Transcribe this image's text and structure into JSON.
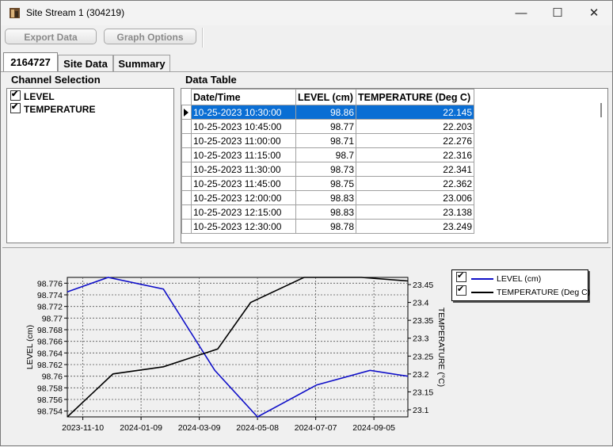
{
  "window": {
    "title": "Site Stream 1 (304219)",
    "minimize": "—",
    "maximize": "☐",
    "close": "✕"
  },
  "toolbar": {
    "export_label": "Export Data",
    "graph_options_label": "Graph Options"
  },
  "tabs": [
    {
      "label": "2164727",
      "active": true
    },
    {
      "label": "Site Data"
    },
    {
      "label": "Summary"
    }
  ],
  "channel_selection": {
    "title": "Channel Selection",
    "items": [
      {
        "label": "LEVEL",
        "checked": true
      },
      {
        "label": "TEMPERATURE",
        "checked": true
      }
    ]
  },
  "data_table": {
    "title": "Data Table",
    "columns": [
      "Date/Time",
      "LEVEL (cm)",
      "TEMPERATURE (Deg C)"
    ],
    "rows": [
      [
        "10-25-2023 10:30:00",
        "98.86",
        "22.145"
      ],
      [
        "10-25-2023 10:45:00",
        "98.77",
        "22.203"
      ],
      [
        "10-25-2023 11:00:00",
        "98.71",
        "22.276"
      ],
      [
        "10-25-2023 11:15:00",
        "98.7",
        "22.316"
      ],
      [
        "10-25-2023 11:30:00",
        "98.73",
        "22.341"
      ],
      [
        "10-25-2023 11:45:00",
        "98.75",
        "22.362"
      ],
      [
        "10-25-2023 12:00:00",
        "98.83",
        "23.006"
      ],
      [
        "10-25-2023 12:15:00",
        "98.83",
        "23.138"
      ],
      [
        "10-25-2023 12:30:00",
        "98.78",
        "23.249"
      ]
    ],
    "selected_row": 0
  },
  "chart_data": {
    "type": "line",
    "xlabel": "",
    "ylabel": "LEVEL (cm)",
    "y2label": "TEMPERATURE (°C)",
    "x_ticks": [
      "2023-11-10",
      "2024-01-09",
      "2024-03-09",
      "2024-05-08",
      "2024-07-07",
      "2024-09-05"
    ],
    "y_ticks": [
      "98.776",
      "98.774",
      "98.772",
      "98.77",
      "98.768",
      "98.766",
      "98.764",
      "98.762",
      "98.76",
      "98.758",
      "98.756",
      "98.754"
    ],
    "y2_ticks": [
      "23.45",
      "23.4",
      "23.35",
      "23.3",
      "23.25",
      "23.2",
      "23.15",
      "23.1"
    ],
    "xlim": [
      "2023-10-25",
      "2024-10-10"
    ],
    "ylim": [
      98.753,
      98.777
    ],
    "y2lim": [
      23.08,
      23.47
    ],
    "grid": true,
    "legend_position": "top-right",
    "series": [
      {
        "name": "LEVEL (cm)",
        "axis": "left",
        "color": "#1010c8",
        "x": [
          "2023-10-25",
          "2023-12-06",
          "2024-02-01",
          "2024-03-25",
          "2024-05-08",
          "2024-07-08",
          "2024-09-01",
          "2024-10-10"
        ],
        "y": [
          98.7745,
          98.777,
          98.775,
          98.761,
          98.753,
          98.7585,
          98.761,
          98.76
        ]
      },
      {
        "name": "TEMPERATURE (Deg C)",
        "axis": "right",
        "color": "#000000",
        "x": [
          "2023-10-25",
          "2023-12-11",
          "2024-02-01",
          "2024-03-28",
          "2024-05-01",
          "2024-06-25",
          "2024-08-23",
          "2024-10-10"
        ],
        "y": [
          23.08,
          23.2,
          23.22,
          23.27,
          23.4,
          23.47,
          23.47,
          23.46
        ]
      }
    ]
  },
  "colors": {
    "selection": "#0a6ed4",
    "level": "#1010c8",
    "temperature": "#000000"
  }
}
